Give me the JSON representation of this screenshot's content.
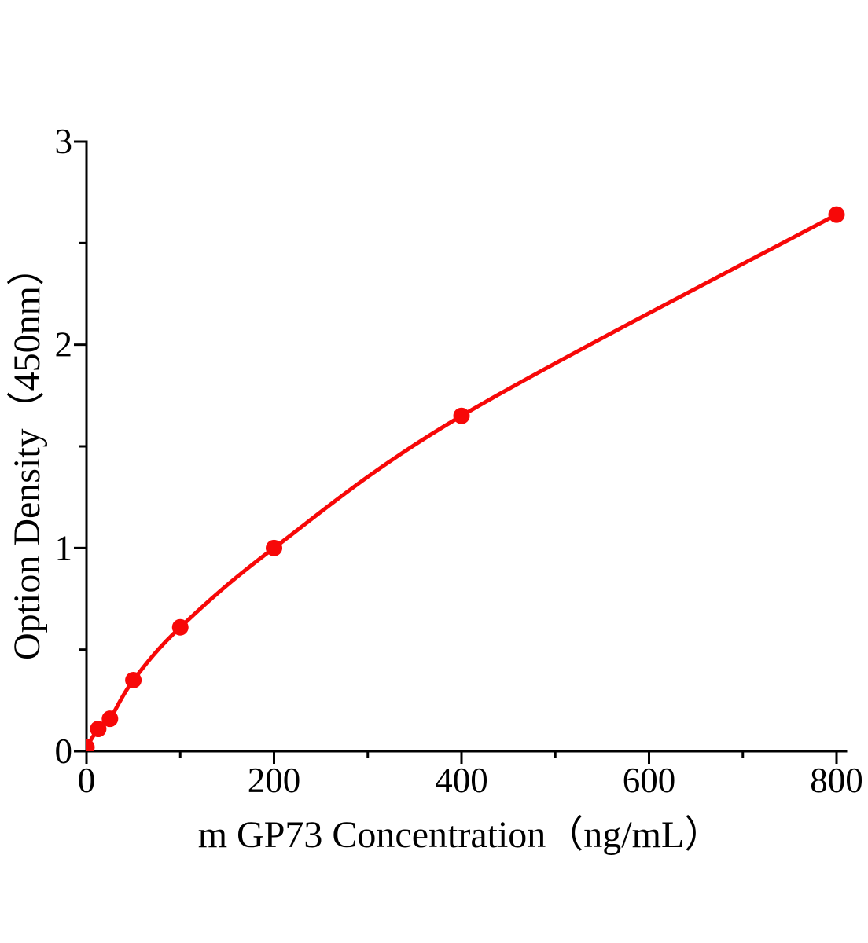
{
  "chart_data": {
    "type": "line",
    "title": "",
    "xlabel": "m GP73 Concentration（ng/mL）",
    "ylabel": "Option Density（450nm）",
    "x": [
      0,
      12.5,
      25,
      50,
      100,
      200,
      400,
      800
    ],
    "y": [
      0.02,
      0.11,
      0.16,
      0.35,
      0.61,
      1.0,
      1.65,
      2.64
    ],
    "xlim": [
      0,
      800
    ],
    "ylim": [
      0,
      3
    ],
    "x_major_ticks": [
      0,
      200,
      400,
      600,
      800
    ],
    "x_minor_ticks": [
      100,
      300,
      500,
      700
    ],
    "y_major_ticks": [
      0,
      1,
      2,
      3
    ],
    "y_minor_ticks": [
      0.5,
      1.5,
      2.5
    ],
    "x_tick_labels": [
      "0",
      "200",
      "400",
      "600",
      "800"
    ],
    "y_tick_labels": [
      "0",
      "1",
      "2",
      "3"
    ],
    "grid": false,
    "legend_position": "none",
    "curve_color": "#f70808",
    "marker_color": "#f70808",
    "axis_color": "#000000",
    "marker_shape": "circle",
    "marker_radius": 10.5,
    "line_width": 5
  }
}
